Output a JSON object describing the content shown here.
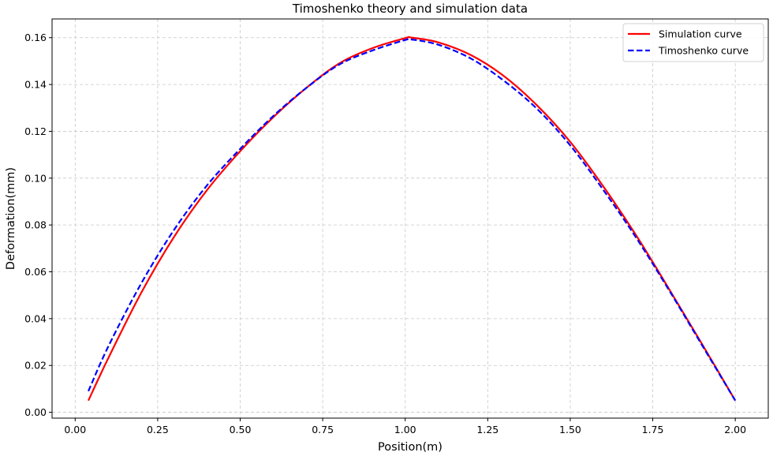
{
  "chart_data": {
    "type": "line",
    "title": "Timoshenko theory and simulation data",
    "xlabel": "Position(m)",
    "ylabel": "Deformation(mm)",
    "xlim": [
      -0.07,
      2.1
    ],
    "ylim": [
      -0.0025,
      0.168
    ],
    "xticks": [
      0.0,
      0.25,
      0.5,
      0.75,
      1.0,
      1.25,
      1.5,
      1.75,
      2.0
    ],
    "xtick_labels": [
      "0.00",
      "0.25",
      "0.50",
      "0.75",
      "1.00",
      "1.25",
      "1.50",
      "1.75",
      "2.00"
    ],
    "yticks": [
      0.0,
      0.02,
      0.04,
      0.06,
      0.08,
      0.1,
      0.12,
      0.14,
      0.16
    ],
    "ytick_labels": [
      "0.00",
      "0.02",
      "0.04",
      "0.06",
      "0.08",
      "0.10",
      "0.12",
      "0.14",
      "0.16"
    ],
    "grid": true,
    "legend_position": "top-right",
    "series": [
      {
        "name": "Simulation curve",
        "color": "#ff0000",
        "style": "solid",
        "x": [
          0.04,
          0.1,
          0.2,
          0.3,
          0.4,
          0.5,
          0.6,
          0.7,
          0.8,
          0.9,
          1.0,
          1.02,
          1.1,
          1.2,
          1.3,
          1.4,
          1.5,
          1.6,
          1.7,
          1.8,
          1.9,
          2.0
        ],
        "y": [
          0.005,
          0.023,
          0.051,
          0.075,
          0.095,
          0.1115,
          0.126,
          0.1385,
          0.149,
          0.1555,
          0.1598,
          0.16,
          0.158,
          0.1525,
          0.1435,
          0.131,
          0.1155,
          0.0965,
          0.0755,
          0.0525,
          0.029,
          0.005
        ]
      },
      {
        "name": "Timoshenko curve",
        "color": "#0000ff",
        "style": "dashed",
        "x": [
          0.04,
          0.1,
          0.2,
          0.3,
          0.4,
          0.5,
          0.6,
          0.7,
          0.8,
          0.9,
          1.0,
          1.02,
          1.1,
          1.2,
          1.3,
          1.4,
          1.5,
          1.6,
          1.7,
          1.8,
          1.9,
          2.0
        ],
        "y": [
          0.009,
          0.028,
          0.055,
          0.078,
          0.097,
          0.1125,
          0.1265,
          0.1385,
          0.1485,
          0.1545,
          0.159,
          0.1592,
          0.157,
          0.151,
          0.1415,
          0.1295,
          0.114,
          0.095,
          0.0745,
          0.052,
          0.0285,
          0.005
        ]
      }
    ]
  }
}
